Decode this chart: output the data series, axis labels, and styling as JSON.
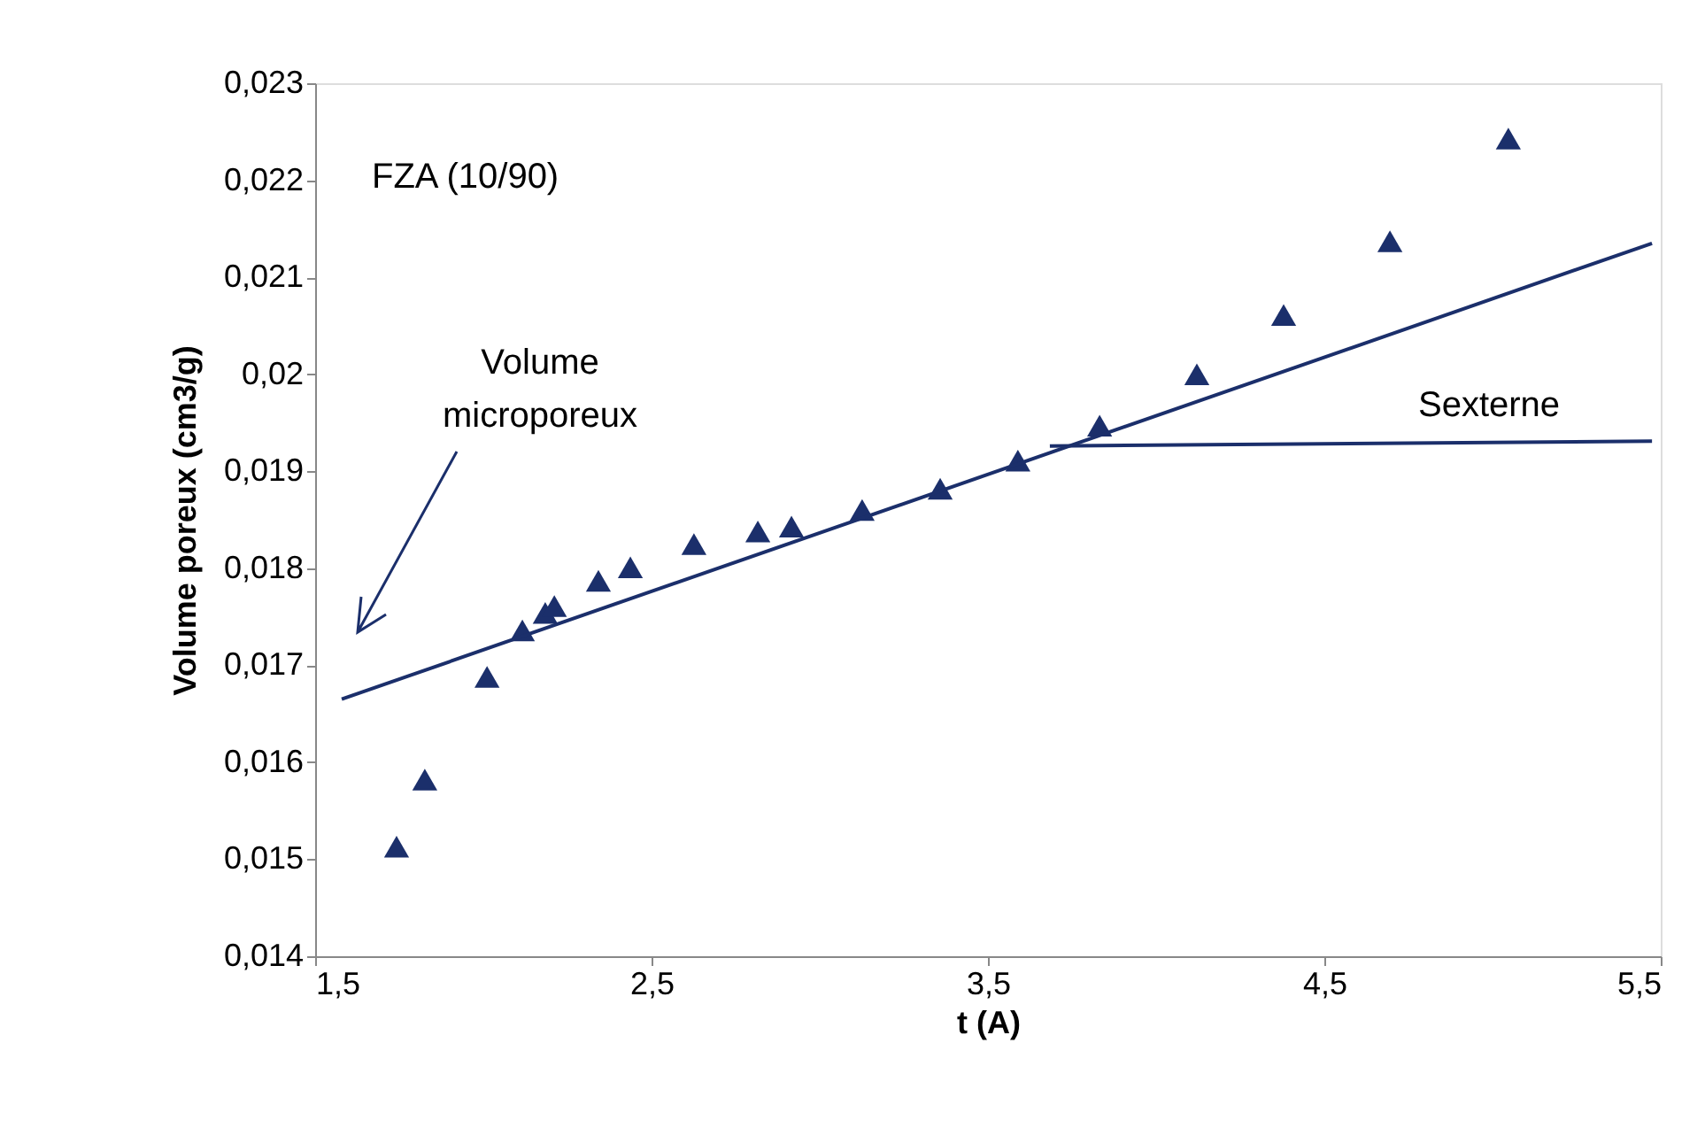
{
  "chart_data": {
    "type": "scatter",
    "xlabel": "t (A)",
    "ylabel": "Volume poreux (cm3/g)",
    "annotations": [
      "FZA (10/90)",
      "Volume\nmicroporeux"
    ],
    "xlim": [
      1.5,
      5.5
    ],
    "ylim": [
      0.014,
      0.023
    ],
    "xticks": [
      {
        "value": 1.5,
        "label": "1,5"
      },
      {
        "value": 2.5,
        "label": "2,5"
      },
      {
        "value": 3.5,
        "label": "3,5"
      },
      {
        "value": 4.5,
        "label": "4,5"
      },
      {
        "value": 5.5,
        "label": "5,5"
      }
    ],
    "yticks": [
      {
        "value": 0.014,
        "label": "0,014"
      },
      {
        "value": 0.015,
        "label": "0,015"
      },
      {
        "value": 0.016,
        "label": "0,016"
      },
      {
        "value": 0.017,
        "label": "0,017"
      },
      {
        "value": 0.018,
        "label": "0,018"
      },
      {
        "value": 0.019,
        "label": "0,019"
      },
      {
        "value": 0.02,
        "label": "0,02"
      },
      {
        "value": 0.021,
        "label": "0,021"
      },
      {
        "value": 0.022,
        "label": "0,022"
      },
      {
        "value": 0.023,
        "label": "0,023"
      }
    ],
    "grid": false,
    "series": [
      {
        "marker": "triangle",
        "color": "#1b2f6b",
        "x": [
          1.742,
          1.826,
          2.011,
          2.116,
          2.184,
          2.211,
          2.342,
          2.437,
          2.626,
          2.816,
          2.916,
          3.126,
          3.358,
          3.589,
          3.832,
          4.121,
          4.379,
          4.695,
          5.047
        ],
        "values": [
          0.01513,
          0.01582,
          0.01688,
          0.01736,
          0.01754,
          0.01761,
          0.01787,
          0.01801,
          0.01825,
          0.01838,
          0.01843,
          0.0186,
          0.01882,
          0.01911,
          0.01947,
          0.02,
          0.02061,
          0.02137,
          0.02243
        ]
      },
      {
        "type": "line",
        "color": "#1b2f6b",
        "x": [
          1.579,
          5.474
        ],
        "values": [
          0.01665,
          0.02135
        ]
      },
      {
        "type": "line",
        "name": "Sexterne",
        "color": "#1b2f6b",
        "x": [
          3.684,
          5.474
        ],
        "values": [
          0.01926,
          0.01931
        ]
      }
    ]
  }
}
